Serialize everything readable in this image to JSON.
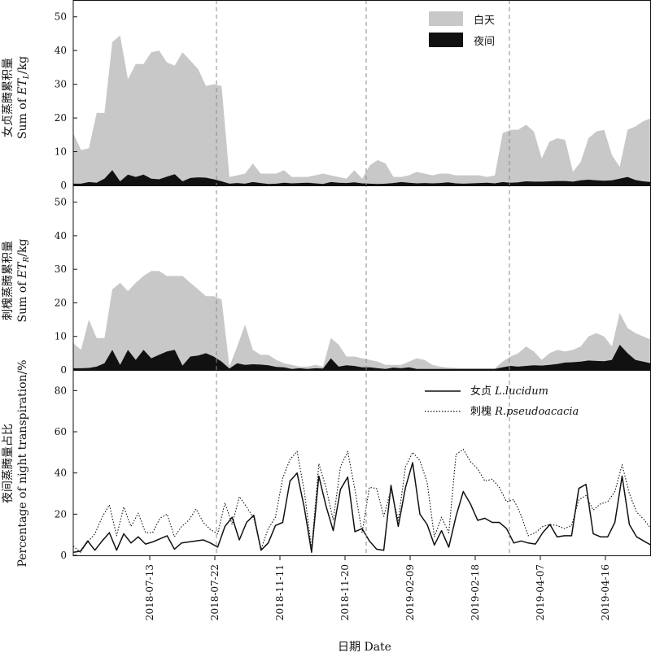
{
  "chart_data": [
    {
      "type": "area",
      "ylabel_cn": "女贞蒸腾累积量",
      "ylabel_en_prefix": "Sum of ",
      "ylabel_en_var": "ET",
      "ylabel_en_sub": "L",
      "ylabel_en_unit": "/kg",
      "ylim": [
        0,
        55
      ],
      "yticks": [
        0,
        10,
        20,
        30,
        40,
        50
      ],
      "legend": [
        "白天",
        "夜间"
      ],
      "legend_position": "top-right",
      "series": [
        {
          "name": "白天",
          "values": [
            15.5,
            10.5,
            11,
            21.5,
            21.5,
            42.5,
            44.5,
            31.5,
            36,
            36,
            39.5,
            40,
            36.5,
            35.5,
            39.5,
            37,
            34.5,
            29.5,
            30,
            29.5,
            2.5,
            3,
            3.5,
            6.5,
            3.5,
            3.5,
            3.5,
            4.5,
            2.5,
            2.5,
            2.5,
            3,
            3.5,
            3,
            2.5,
            2,
            4.5,
            2,
            6,
            7.5,
            6.5,
            2.5,
            2.5,
            3,
            4,
            3.5,
            3,
            3.5,
            3.5,
            3,
            3,
            3,
            3,
            2.5,
            3,
            15.5,
            16.5,
            16.5,
            18,
            16,
            8,
            13,
            14,
            13.5,
            4,
            7,
            14,
            16,
            16.5,
            9,
            5.5,
            16.5,
            17.5,
            19,
            20
          ]
        },
        {
          "name": "夜间",
          "values": [
            0.5,
            0.5,
            1,
            0.8,
            2,
            4.5,
            1.2,
            3.2,
            2.5,
            3.2,
            2,
            1.8,
            2.6,
            3.3,
            1.2,
            2.2,
            2.4,
            2.3,
            1.8,
            1.2,
            0.5,
            0.7,
            0.5,
            1,
            0.7,
            0.4,
            0.5,
            0.8,
            0.6,
            0.7,
            0.8,
            0.6,
            0.4,
            1,
            0.8,
            0.7,
            0.9,
            0.6,
            0.5,
            0.4,
            0.5,
            0.7,
            1,
            0.8,
            0.6,
            0.7,
            0.6,
            0.7,
            0.9,
            0.6,
            0.5,
            0.6,
            0.7,
            0.8,
            0.6,
            1,
            0.8,
            0.9,
            1.2,
            1.1,
            1.1,
            1.2,
            1.3,
            1.3,
            1.1,
            1.5,
            1.7,
            1.5,
            1.4,
            1.5,
            2,
            2.5,
            1.6,
            1.2,
            1
          ]
        }
      ]
    },
    {
      "type": "area",
      "ylabel_cn": "刺槐蒸腾累积量",
      "ylabel_en_prefix": "Sum of ",
      "ylabel_en_var": "ET",
      "ylabel_en_sub": "R",
      "ylabel_en_unit": "/kg",
      "ylim": [
        0,
        55
      ],
      "yticks": [
        0,
        10,
        20,
        30,
        40,
        50
      ],
      "series": [
        {
          "name": "白天",
          "values": [
            8,
            6,
            15,
            9.5,
            9.5,
            24,
            26,
            23.5,
            26,
            28,
            29.5,
            29.5,
            28,
            28,
            28,
            26,
            24,
            22,
            22,
            21,
            1,
            7,
            13.5,
            6,
            4.5,
            4.5,
            3,
            2,
            1.5,
            1,
            1,
            1.5,
            1,
            9.5,
            7.5,
            4,
            4,
            3.5,
            3,
            2.5,
            1.5,
            1.5,
            1.5,
            2.5,
            3.5,
            3,
            1.5,
            1,
            0.7,
            0.6,
            0.5,
            0.5,
            0.5,
            0.5,
            0.5,
            2.5,
            4,
            5,
            7,
            5.5,
            3,
            5,
            6,
            5.5,
            6,
            7,
            10,
            11,
            10,
            7,
            17,
            12.5,
            11,
            10,
            9
          ]
        },
        {
          "name": "夜间",
          "values": [
            0.5,
            0.5,
            0.6,
            1,
            2,
            6,
            1.5,
            6,
            3,
            6,
            3.5,
            4.5,
            5.5,
            6,
            1.3,
            4,
            4.3,
            5,
            4,
            2.5,
            0.4,
            2,
            1.5,
            1.7,
            1.6,
            1.4,
            0.9,
            0.8,
            0.3,
            0.5,
            0.3,
            0.5,
            0.4,
            3.5,
            1,
            1.4,
            1.2,
            0.8,
            0.8,
            0.5,
            0.3,
            0.7,
            0.5,
            0.8,
            0.3,
            0.3,
            0.3,
            0.3,
            0.3,
            0.3,
            0.3,
            0.3,
            0.3,
            0.3,
            0.3,
            0.8,
            1.2,
            1,
            1.2,
            1.4,
            1.3,
            1.5,
            1.8,
            2.2,
            2.3,
            2.5,
            2.8,
            2.7,
            2.6,
            3,
            7.5,
            5,
            3,
            2.5,
            2
          ]
        }
      ]
    },
    {
      "type": "line",
      "ylabel_cn": "夜间蒸腾量占比",
      "ylabel_en": "Percentage of night transpiration/%",
      "ylim": [
        0,
        90
      ],
      "yticks": [
        0,
        20,
        40,
        60,
        80
      ],
      "legend_position": "top-right",
      "series": [
        {
          "name_cn": "女贞",
          "name_en": "L.lucidum",
          "style": "solid",
          "values": [
            1.5,
            2,
            7,
            2.5,
            7,
            11,
            2.5,
            10.5,
            6,
            9,
            5.5,
            6.5,
            8,
            9.5,
            3,
            6,
            6.5,
            7,
            7.5,
            6,
            4,
            14,
            18.5,
            7.5,
            16,
            19.5,
            2.5,
            6,
            14.5,
            16,
            36,
            40,
            23,
            1.5,
            38.5,
            24,
            12,
            32,
            38,
            11.5,
            13,
            7,
            3,
            2.5,
            34,
            14,
            33,
            45,
            20,
            15,
            5,
            12,
            4,
            19,
            31,
            25,
            17,
            18,
            16,
            16,
            13,
            6,
            7,
            6,
            5.5,
            11,
            15,
            9,
            9.5,
            9.5,
            32.5,
            34.5,
            10.5,
            9,
            9,
            16,
            38.5,
            15,
            9,
            7,
            5
          ]
        },
        {
          "name_cn": "刺槐",
          "name_en": "R.pseudoacacia",
          "style": "dotted",
          "values": [
            4.5,
            1.5,
            6.5,
            10.5,
            18.5,
            24.5,
            9.5,
            23.5,
            14,
            20.5,
            11,
            11,
            18,
            20,
            9,
            14,
            17,
            22.5,
            16,
            12.5,
            10.5,
            25.5,
            15,
            28.5,
            23.5,
            18,
            3,
            13,
            18.5,
            37.5,
            46.5,
            50.5,
            31,
            3,
            44.5,
            33,
            17,
            43,
            50.5,
            32,
            11,
            33,
            32.5,
            19,
            32,
            17,
            43,
            50,
            46,
            35.5,
            9,
            18.5,
            11,
            49,
            51.5,
            45.5,
            42,
            36,
            37,
            33,
            26,
            27,
            19.5,
            9.5,
            11,
            14,
            15,
            14.5,
            13,
            14.5,
            27,
            29,
            22,
            25,
            26,
            31,
            44,
            30,
            21,
            17.5,
            13
          ]
        }
      ]
    }
  ],
  "x_tick_labels": [
    "2018-07-13",
    "2018-07-22",
    "2018-11-11",
    "2018-11-20",
    "2019-02-09",
    "2019-02-18",
    "2019-04-07",
    "2019-04-16"
  ],
  "xlabel": "日期 Date",
  "separators": [
    "2018-07-22",
    "2018-11-20",
    "2019-04-07"
  ]
}
